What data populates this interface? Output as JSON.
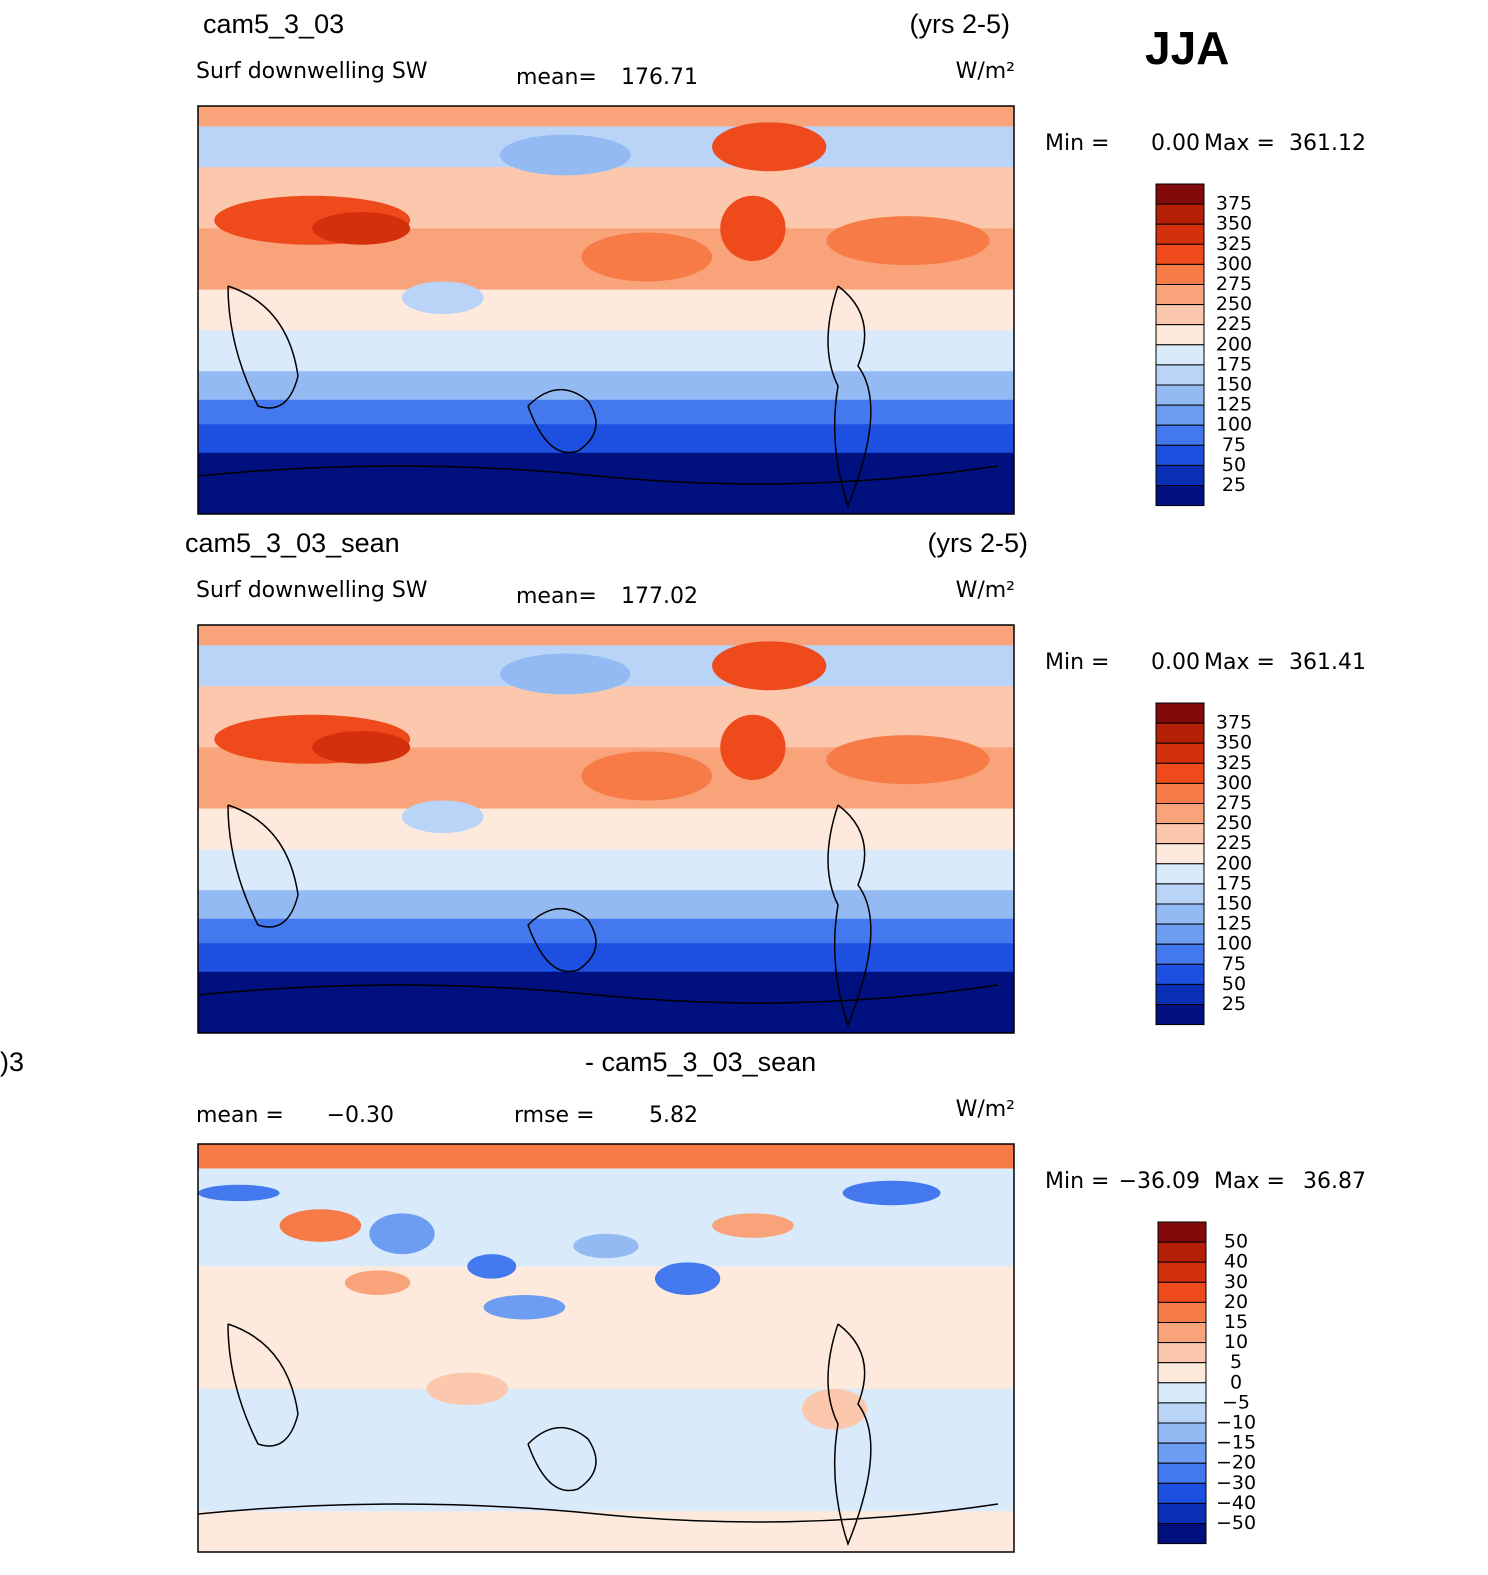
{
  "season": "JJA",
  "panels": [
    {
      "case": "cam5_3_03",
      "period": "(yrs 2-5)",
      "variable": "Surf  downwelling SW",
      "mean_label": "mean=",
      "mean": "176.71",
      "units": "W/m²",
      "min_label": "Min =",
      "min": "0.00",
      "max_label": "Max =",
      "max": "361.12",
      "colorbar": {
        "labels": [
          "375",
          "350",
          "325",
          "300",
          "275",
          "250",
          "225",
          "200",
          "175",
          "150",
          "125",
          "100",
          "75",
          "50",
          "25"
        ],
        "colors": [
          "#820a0a",
          "#b51f06",
          "#d5300d",
          "#ee4a1c",
          "#f67b46",
          "#f9a37b",
          "#fcc8ad",
          "#fdeadd",
          "#d9ebfb",
          "#b9d4f7",
          "#94baf3",
          "#6c9df0",
          "#4478ee",
          "#1d4fe0",
          "#0a2fb5",
          "#00107e"
        ]
      }
    },
    {
      "case": "cam5_3_03_sean",
      "period": "(yrs 2-5)",
      "variable": "Surf  downwelling SW",
      "mean_label": "mean=",
      "mean": "177.02",
      "units": "W/m²",
      "min_label": "Min =",
      "min": "0.00",
      "max_label": "Max =",
      "max": "361.41",
      "colorbar": {
        "labels": [
          "375",
          "350",
          "325",
          "300",
          "275",
          "250",
          "225",
          "200",
          "175",
          "150",
          "125",
          "100",
          "75",
          "50",
          "25"
        ],
        "colors": [
          "#820a0a",
          "#b51f06",
          "#d5300d",
          "#ee4a1c",
          "#f67b46",
          "#f9a37b",
          "#fcc8ad",
          "#fdeadd",
          "#d9ebfb",
          "#b9d4f7",
          "#94baf3",
          "#6c9df0",
          "#4478ee",
          "#1d4fe0",
          "#0a2fb5",
          "#00107e"
        ]
      }
    },
    {
      "case": ")3",
      "subtitle": "- cam5_3_03_sean",
      "mean_label": "mean =",
      "mean": "−0.30",
      "rmse_label": "rmse =",
      "rmse": "5.82",
      "units": "W/m²",
      "min_label": "Min =",
      "min": "−36.09",
      "max_label": "Max =",
      "max": "36.87",
      "colorbar": {
        "labels": [
          "50",
          "40",
          "30",
          "20",
          "15",
          "10",
          "5",
          "0",
          "−5",
          "−10",
          "−15",
          "−20",
          "−30",
          "−40",
          "−50"
        ],
        "colors": [
          "#820a0a",
          "#b51f06",
          "#d5300d",
          "#ee4a1c",
          "#f67b46",
          "#f9a37b",
          "#fcc8ad",
          "#fdeadd",
          "#d9ebfb",
          "#b9d4f7",
          "#94baf3",
          "#6c9df0",
          "#4478ee",
          "#1d4fe0",
          "#0a2fb5",
          "#00107e"
        ]
      }
    }
  ]
}
